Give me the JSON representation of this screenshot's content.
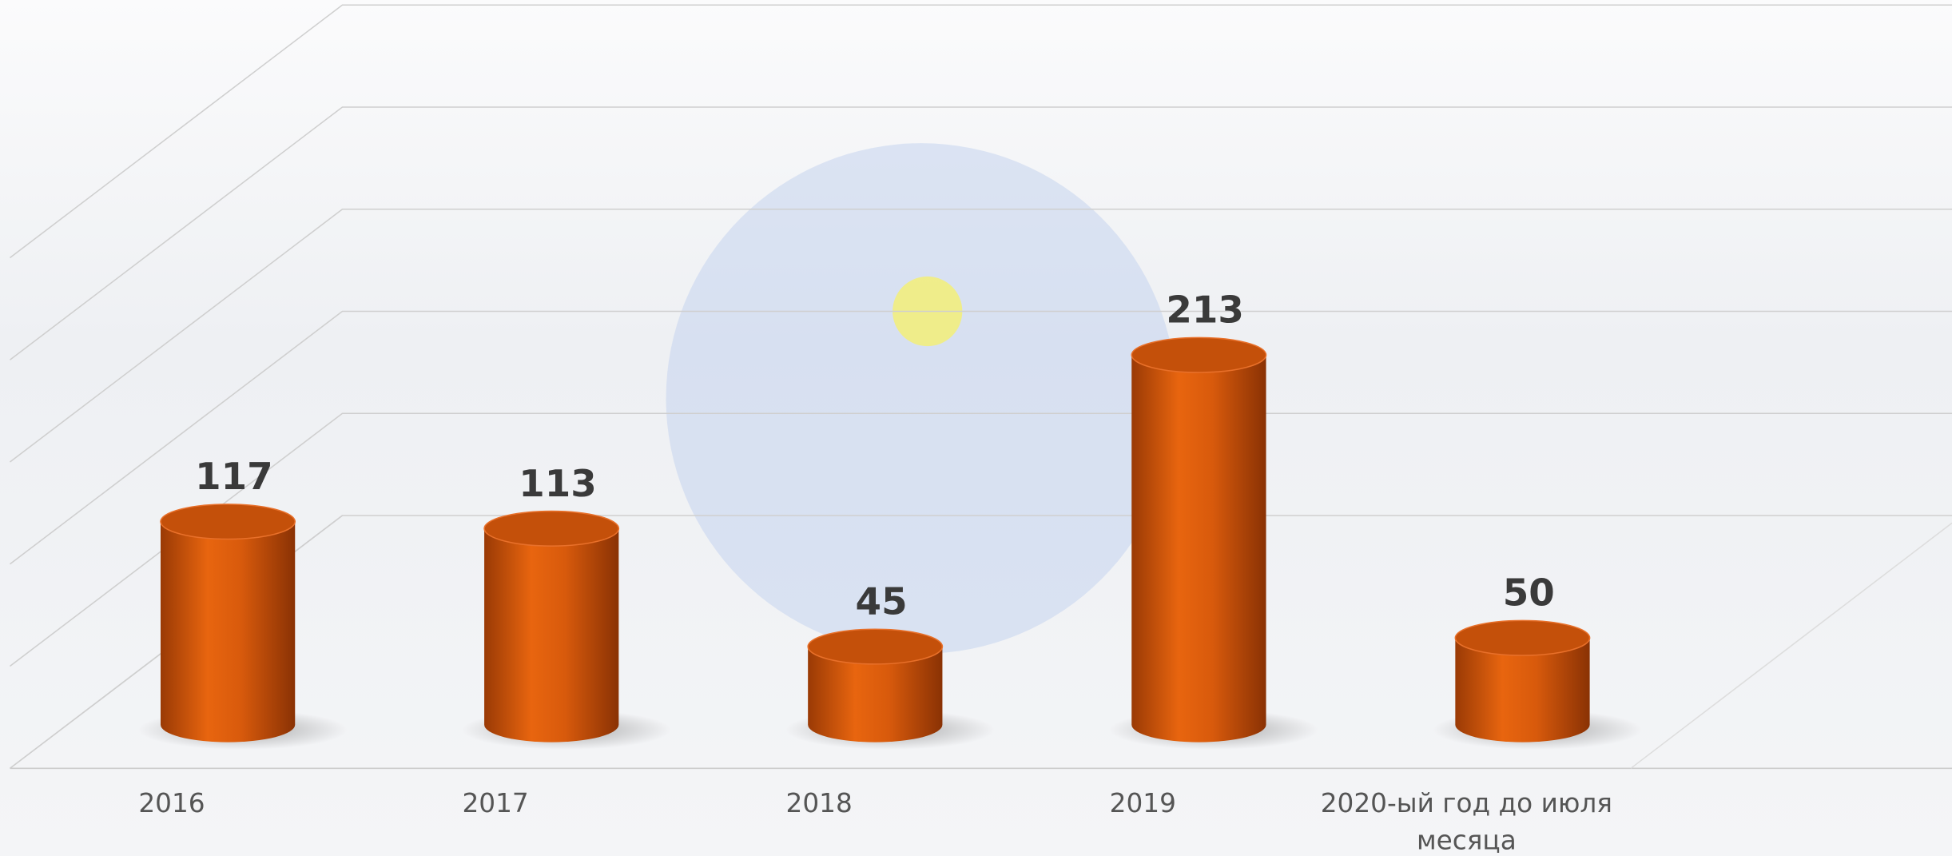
{
  "chart_data": {
    "type": "bar",
    "categories": [
      "2016",
      "2017",
      "2018",
      "2019",
      "2020-ый год до июля месяца"
    ],
    "values": [
      117,
      113,
      45,
      213,
      50
    ],
    "color": "#e0600f",
    "ylim": [
      0,
      250
    ],
    "yticks": [
      0,
      50,
      100,
      150,
      200,
      250
    ],
    "grid": true
  }
}
